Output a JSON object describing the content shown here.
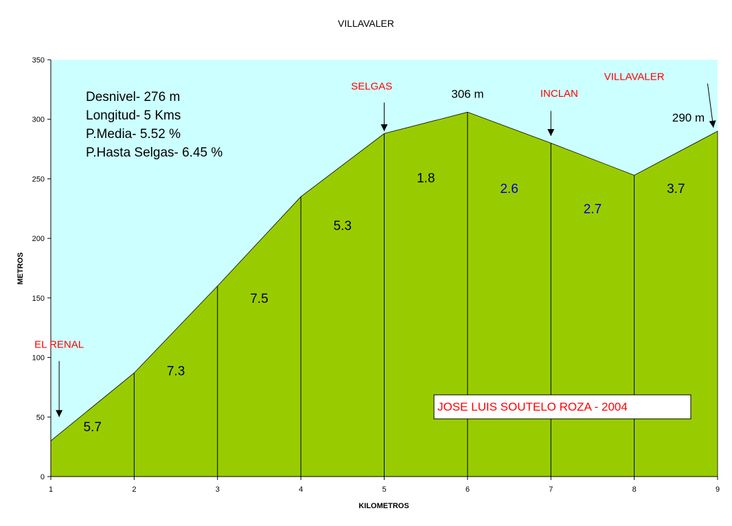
{
  "chart_data": {
    "type": "area",
    "title": "VILLAVALER",
    "xlabel": "KILOMETROS",
    "ylabel": "METROS",
    "x": [
      1,
      2,
      3,
      4,
      5,
      6,
      7,
      8,
      9
    ],
    "xlim": [
      1,
      9
    ],
    "ylim": [
      0,
      350
    ],
    "x_ticks": [
      "1",
      "2",
      "3",
      "4",
      "5",
      "6",
      "7",
      "8",
      "9"
    ],
    "y_ticks": [
      "0",
      "50",
      "100",
      "150",
      "200",
      "250",
      "300",
      "350"
    ],
    "series": [
      {
        "values": [
          30,
          87,
          160,
          235,
          288,
          306,
          280,
          253,
          290
        ]
      }
    ],
    "area_color": "#99cc00",
    "background_color": "#ccffff",
    "grid": false,
    "segment_gradients": [
      {
        "label": "5.7",
        "x": 1.5,
        "y": 38,
        "color": "#000000"
      },
      {
        "label": "7.3",
        "x": 2.5,
        "y": 85,
        "color": "#000000"
      },
      {
        "label": "7.5",
        "x": 3.5,
        "y": 146,
        "color": "#000000"
      },
      {
        "label": "5.3",
        "x": 4.5,
        "y": 207,
        "color": "#000000"
      },
      {
        "label": "1.8",
        "x": 5.5,
        "y": 247,
        "color": "#000000"
      },
      {
        "label": "2.6",
        "x": 6.5,
        "y": 238,
        "color": "#0000cc"
      },
      {
        "label": "2.7",
        "x": 7.5,
        "y": 221,
        "color": "#0000cc"
      },
      {
        "label": "3.7",
        "x": 8.5,
        "y": 238,
        "color": "#000000"
      }
    ],
    "places": [
      {
        "name": "EL RENAL",
        "x": 1.1,
        "y": 108,
        "arrow_to": [
          1.1,
          50
        ],
        "arrow_from": [
          1.1,
          97
        ]
      },
      {
        "name": "SELGAS",
        "x": 4.85,
        "y": 325,
        "arrow_to": [
          5,
          290
        ],
        "arrow_from": [
          5,
          314
        ]
      },
      {
        "name": "INCLAN",
        "x": 7.1,
        "y": 319,
        "arrow_to": [
          7,
          286
        ],
        "arrow_from": [
          7,
          307
        ]
      },
      {
        "name": "VILLAVALER",
        "x": 8.0,
        "y": 333,
        "arrow_to": [
          8.95,
          293
        ],
        "arrow_from": [
          8.88,
          330
        ]
      }
    ],
    "elevation_labels": [
      {
        "text": "306 m",
        "x": 6.0,
        "y": 318
      },
      {
        "text": "290 m",
        "x": 8.65,
        "y": 298
      }
    ],
    "annotations": [
      "Desnivel- 276 m",
      "Longitud- 5 Kms",
      "P.Media- 5.52 %",
      "P.Hasta Selgas- 6.45 %"
    ],
    "credit": "JOSE LUIS SOUTELO ROZA - 2004"
  }
}
